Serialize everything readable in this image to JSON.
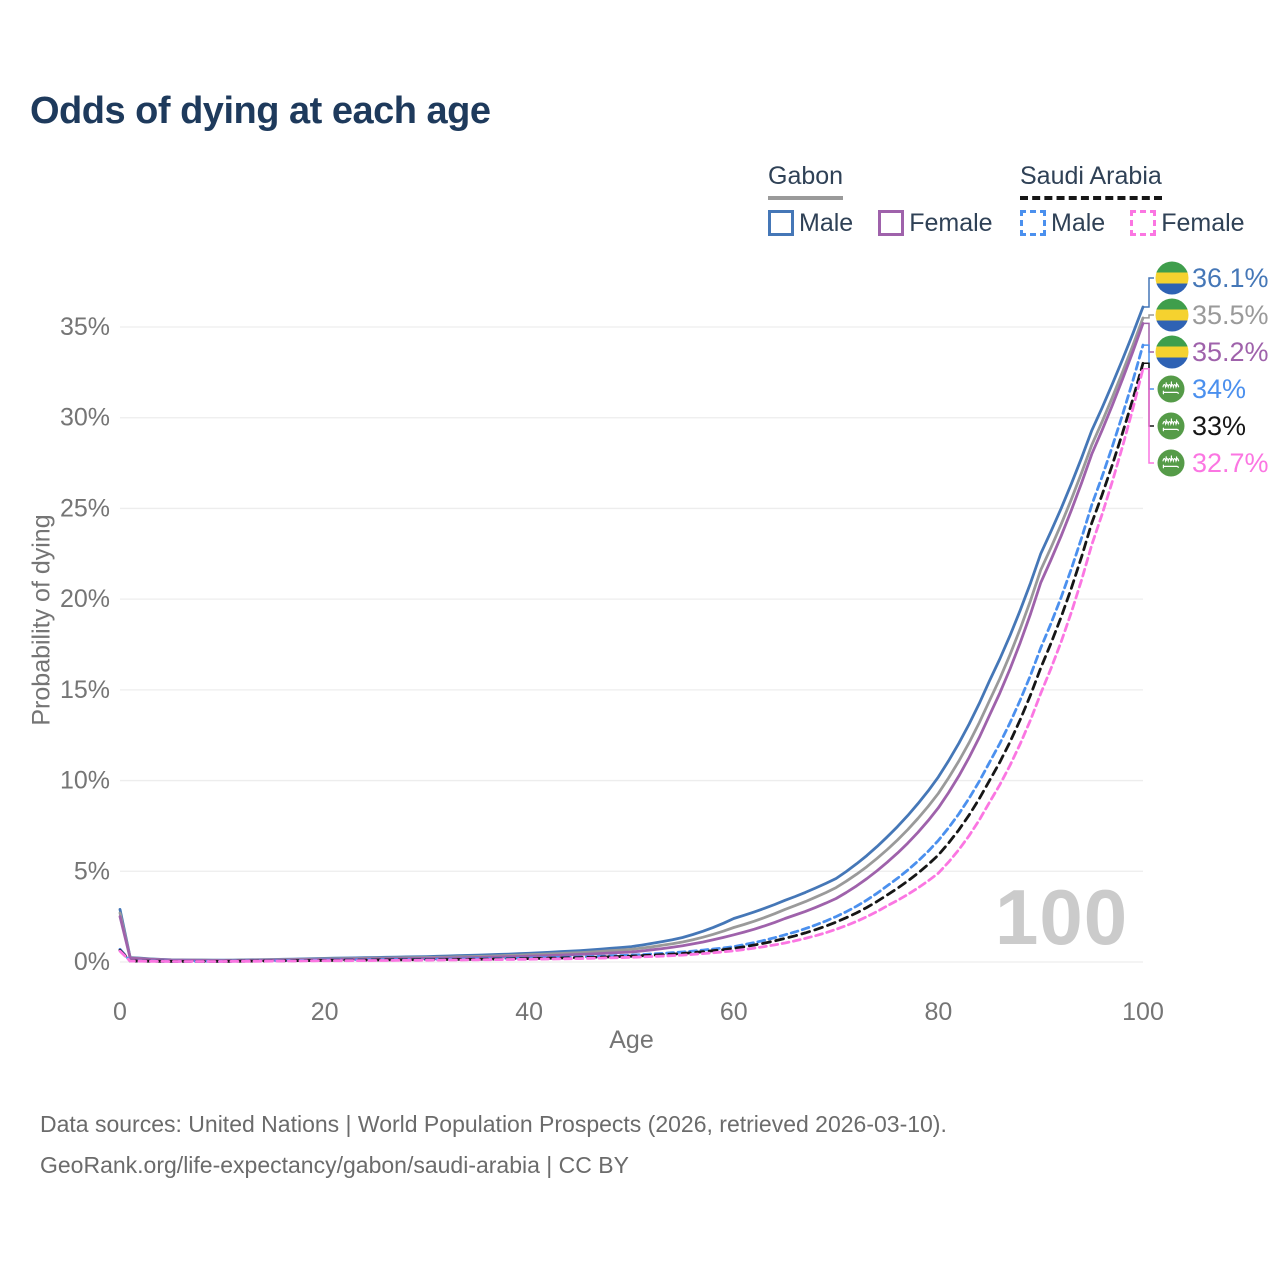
{
  "title": "Odds of dying at each age",
  "watermark": "100",
  "legend": {
    "gabon": {
      "label": "Gabon",
      "male": "Male",
      "female": "Female"
    },
    "saudi": {
      "label": "Saudi Arabia",
      "male": "Male",
      "female": "Female"
    }
  },
  "footer": {
    "line1": "Data sources: United Nations | World Population Prospects (2026, retrieved 2026-03-10).",
    "line2": "GeoRank.org/life-expectancy/gabon/saudi-arabia | CC BY"
  },
  "colors": {
    "title_text": "#1e3a5c",
    "axis_text": "#757575",
    "grid": "#ededed",
    "watermark": "#cbcbcb",
    "gabon_flag_green": "#3f9e4c",
    "gabon_flag_yellow": "#f5d22f",
    "gabon_flag_blue": "#2e62b4",
    "saudi_flag_green": "#559b48"
  },
  "chart_data": {
    "type": "line",
    "title": "Odds of dying at each age",
    "xlabel": "Age",
    "ylabel": "Probability of dying",
    "xlim": [
      0,
      100
    ],
    "ylim": [
      0,
      35
    ],
    "x_ticks": [
      0,
      20,
      40,
      60,
      80,
      100
    ],
    "y_ticks": [
      0,
      5,
      10,
      15,
      20,
      25,
      30,
      35
    ],
    "y_tick_suffix": "%",
    "grid": "horizontal",
    "legend_position": "top-right",
    "ages": [
      0,
      1,
      5,
      10,
      15,
      20,
      25,
      30,
      35,
      40,
      45,
      50,
      55,
      60,
      65,
      70,
      75,
      80,
      85,
      90,
      95,
      100
    ],
    "series": [
      {
        "name": "Gabon Male",
        "country": "Gabon",
        "sex": "Male",
        "flag": "gabon",
        "line": "solid",
        "color": "#4577b7",
        "end_label": "36.1%",
        "values": [
          2.9,
          0.25,
          0.12,
          0.1,
          0.14,
          0.2,
          0.25,
          0.3,
          0.38,
          0.48,
          0.63,
          0.85,
          1.35,
          2.4,
          3.4,
          4.6,
          6.9,
          10.2,
          15.5,
          22.5,
          29.3,
          36.1
        ]
      },
      {
        "name": "Gabon Both sexes",
        "country": "Gabon",
        "sex": "Both",
        "flag": "gabon",
        "line": "solid",
        "color": "#9a9a9a",
        "end_label": "35.5%",
        "values": [
          2.7,
          0.23,
          0.11,
          0.09,
          0.12,
          0.17,
          0.21,
          0.25,
          0.31,
          0.4,
          0.52,
          0.7,
          1.1,
          1.9,
          2.9,
          4.1,
          6.2,
          9.3,
          14.4,
          21.6,
          28.5,
          35.5
        ]
      },
      {
        "name": "Gabon Female",
        "country": "Gabon",
        "sex": "Female",
        "flag": "gabon",
        "line": "solid",
        "color": "#9f62ab",
        "end_label": "35.2%",
        "values": [
          2.5,
          0.21,
          0.1,
          0.08,
          0.1,
          0.14,
          0.17,
          0.2,
          0.25,
          0.32,
          0.42,
          0.55,
          0.9,
          1.5,
          2.4,
          3.5,
          5.5,
          8.5,
          13.6,
          20.9,
          28.0,
          35.2
        ]
      },
      {
        "name": "Saudi Arabia Male",
        "country": "Saudi Arabia",
        "sex": "Male",
        "flag": "saudi",
        "line": "dashed",
        "color": "#4b90ee",
        "end_label": "34%",
        "values": [
          0.7,
          0.06,
          0.04,
          0.04,
          0.07,
          0.11,
          0.13,
          0.15,
          0.18,
          0.22,
          0.28,
          0.38,
          0.55,
          0.85,
          1.5,
          2.5,
          4.2,
          6.7,
          11.0,
          17.3,
          25.2,
          34.0
        ]
      },
      {
        "name": "Saudi Arabia Both sexes",
        "country": "Saudi Arabia",
        "sex": "Both",
        "flag": "saudi",
        "line": "dashed",
        "color": "#161616",
        "end_label": "33%",
        "values": [
          0.65,
          0.055,
          0.035,
          0.035,
          0.06,
          0.09,
          0.11,
          0.13,
          0.15,
          0.19,
          0.24,
          0.32,
          0.47,
          0.75,
          1.3,
          2.2,
          3.7,
          5.9,
          10.0,
          16.2,
          24.2,
          33.0
        ]
      },
      {
        "name": "Saudi Arabia Female",
        "country": "Saudi Arabia",
        "sex": "Female",
        "flag": "saudi",
        "line": "dashed",
        "color": "#fb76e2",
        "end_label": "32.7%",
        "values": [
          0.6,
          0.05,
          0.03,
          0.03,
          0.05,
          0.07,
          0.08,
          0.1,
          0.12,
          0.15,
          0.19,
          0.26,
          0.38,
          0.62,
          1.05,
          1.8,
          3.1,
          4.9,
          8.8,
          14.8,
          23.0,
          32.7
        ]
      }
    ]
  }
}
